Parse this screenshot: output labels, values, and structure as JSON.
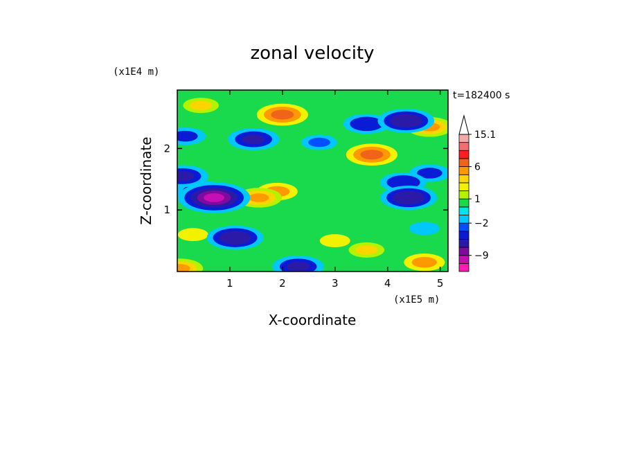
{
  "chart_data": {
    "type": "heatmap",
    "title": "zonal velocity",
    "xlabel": "X-coordinate",
    "ylabel": "Z-coordinate",
    "x_scale_label": "(x1E5 m)",
    "y_scale_label": "(x1E4 m)",
    "time_label": "t=182400 s",
    "xlim": [
      0,
      5.15
    ],
    "ylim": [
      0,
      2.95
    ],
    "x_ticks": [
      1,
      2,
      3,
      4,
      5
    ],
    "y_ticks": [
      1,
      2
    ],
    "colorbar": {
      "levels": [
        -15.1,
        -12,
        -9,
        -7,
        -5,
        -3,
        -2,
        -1,
        0,
        1,
        2,
        3,
        4,
        6,
        8,
        10,
        12,
        15.1
      ],
      "colors": [
        "#ff1ab3",
        "#c40fb5",
        "#800a9e",
        "#2b1aa8",
        "#0a1bd6",
        "#0050ff",
        "#00c8ff",
        "#00e6e6",
        "#19d94d",
        "#b3f200",
        "#f2f200",
        "#ffd500",
        "#ff9900",
        "#f0641a",
        "#ff1f1f",
        "#f07070",
        "#f5a8a8"
      ],
      "tick_labels": [
        {
          "value": 15.1,
          "label": "15.1"
        },
        {
          "value": 6,
          "label": "6"
        },
        {
          "value": 1,
          "label": "1"
        },
        {
          "value": -2,
          "label": "−2"
        },
        {
          "value": -9,
          "label": "−9"
        }
      ],
      "extend": "max"
    },
    "features": [
      {
        "x": 0.7,
        "z": 1.2,
        "value": -10
      },
      {
        "x": 0.45,
        "z": 1.3,
        "value": -6
      },
      {
        "x": 0.1,
        "z": 1.55,
        "value": -6
      },
      {
        "x": 1.1,
        "z": 0.55,
        "value": -7
      },
      {
        "x": 1.45,
        "z": 2.15,
        "value": -6
      },
      {
        "x": 1.55,
        "z": 1.2,
        "value": 5
      },
      {
        "x": 1.9,
        "z": 1.3,
        "value": 4
      },
      {
        "x": 2.0,
        "z": 2.55,
        "value": 6
      },
      {
        "x": 2.3,
        "z": 0.08,
        "value": -6
      },
      {
        "x": 2.7,
        "z": 2.1,
        "value": -3
      },
      {
        "x": 3.6,
        "z": 2.4,
        "value": -5
      },
      {
        "x": 3.7,
        "z": 1.9,
        "value": 6
      },
      {
        "x": 4.3,
        "z": 1.45,
        "value": -5
      },
      {
        "x": 4.4,
        "z": 1.2,
        "value": -7
      },
      {
        "x": 4.35,
        "z": 2.45,
        "value": -7
      },
      {
        "x": 4.8,
        "z": 1.6,
        "value": -4
      },
      {
        "x": 4.8,
        "z": 2.35,
        "value": 5
      },
      {
        "x": 4.7,
        "z": 0.15,
        "value": 4
      },
      {
        "x": 0.45,
        "z": 2.7,
        "value": 3
      },
      {
        "x": 0.15,
        "z": 2.2,
        "value": -4
      },
      {
        "x": 3.0,
        "z": 0.5,
        "value": 2
      },
      {
        "x": 3.6,
        "z": 0.35,
        "value": 3
      },
      {
        "x": 4.7,
        "z": 0.7,
        "value": -2
      },
      {
        "x": 0.3,
        "z": 0.6,
        "value": 2
      },
      {
        "x": 0.05,
        "z": 0.05,
        "value": 5
      }
    ]
  }
}
